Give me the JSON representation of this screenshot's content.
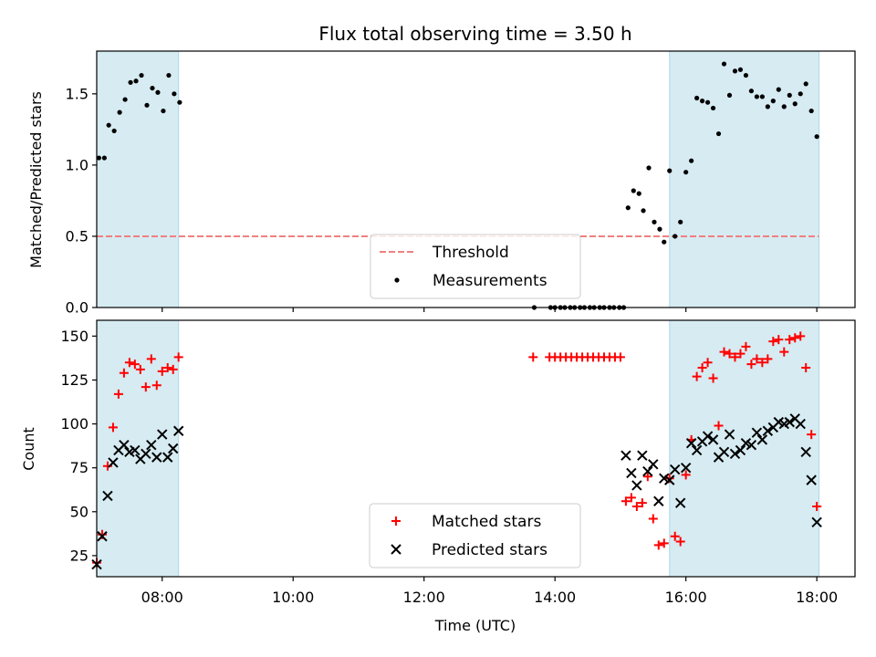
{
  "figure": {
    "title": "Flux total observing time = 3.50 h",
    "xlabel": "Time (UTC)"
  },
  "colors": {
    "shade": "#add8e6",
    "threshold": "#f08080",
    "measurement": "#000000",
    "matched": "#ff0000",
    "predicted": "#000000"
  },
  "chart_data": [
    {
      "type": "scatter",
      "ylabel": "Matched/Predicted stars",
      "xlim": [
        "07:00",
        "18:35"
      ],
      "ylim": [
        0,
        1.8
      ],
      "yticks": [
        0.0,
        0.5,
        1.0,
        1.5
      ],
      "ytick_labels": [
        "0.0",
        "0.5",
        "1.0",
        "1.5"
      ],
      "xticks": [
        "08:00",
        "10:00",
        "12:00",
        "14:00",
        "16:00",
        "18:00"
      ],
      "shaded_intervals": [
        [
          "07:00",
          "08:15"
        ],
        [
          "15:45",
          "18:02"
        ]
      ],
      "threshold": {
        "name": "Threshold",
        "value": 0.5,
        "style": "dashed",
        "xrange": [
          "07:00",
          "18:02"
        ]
      },
      "legend_position": "bottom-center",
      "series": [
        {
          "name": "Measurements",
          "marker": "dot",
          "points": [
            [
              "07:02",
              1.05
            ],
            [
              "07:07",
              1.05
            ],
            [
              "07:11",
              1.28
            ],
            [
              "07:16",
              1.24
            ],
            [
              "07:21",
              1.37
            ],
            [
              "07:26",
              1.46
            ],
            [
              "07:31",
              1.58
            ],
            [
              "07:36",
              1.59
            ],
            [
              "07:41",
              1.63
            ],
            [
              "07:46",
              1.42
            ],
            [
              "07:51",
              1.54
            ],
            [
              "07:56",
              1.51
            ],
            [
              "08:01",
              1.38
            ],
            [
              "08:06",
              1.63
            ],
            [
              "08:11",
              1.5
            ],
            [
              "08:16",
              1.44
            ],
            [
              "13:41",
              0.0
            ],
            [
              "13:56",
              0.0
            ],
            [
              "14:00",
              0.0
            ],
            [
              "14:05",
              0.0
            ],
            [
              "14:09",
              0.0
            ],
            [
              "14:14",
              0.0
            ],
            [
              "14:18",
              0.0
            ],
            [
              "14:23",
              0.0
            ],
            [
              "14:27",
              0.0
            ],
            [
              "14:32",
              0.0
            ],
            [
              "14:36",
              0.0
            ],
            [
              "14:41",
              0.0
            ],
            [
              "14:45",
              0.0
            ],
            [
              "14:50",
              0.0
            ],
            [
              "14:54",
              0.0
            ],
            [
              "14:59",
              0.0
            ],
            [
              "15:03",
              0.0
            ],
            [
              "15:07",
              0.7
            ],
            [
              "15:12",
              0.82
            ],
            [
              "15:17",
              0.8
            ],
            [
              "15:21",
              0.68
            ],
            [
              "15:26",
              0.98
            ],
            [
              "15:31",
              0.6
            ],
            [
              "15:36",
              0.55
            ],
            [
              "15:40",
              0.46
            ],
            [
              "15:45",
              0.96
            ],
            [
              "15:50",
              0.5
            ],
            [
              "15:55",
              0.6
            ],
            [
              "16:00",
              0.95
            ],
            [
              "16:05",
              1.03
            ],
            [
              "16:10",
              1.47
            ],
            [
              "16:15",
              1.45
            ],
            [
              "16:20",
              1.44
            ],
            [
              "16:25",
              1.4
            ],
            [
              "16:30",
              1.22
            ],
            [
              "16:35",
              1.71
            ],
            [
              "16:40",
              1.49
            ],
            [
              "16:45",
              1.66
            ],
            [
              "16:50",
              1.67
            ],
            [
              "16:55",
              1.63
            ],
            [
              "17:00",
              1.52
            ],
            [
              "17:05",
              1.48
            ],
            [
              "17:10",
              1.48
            ],
            [
              "17:15",
              1.41
            ],
            [
              "17:20",
              1.45
            ],
            [
              "17:25",
              1.53
            ],
            [
              "17:30",
              1.41
            ],
            [
              "17:35",
              1.49
            ],
            [
              "17:40",
              1.43
            ],
            [
              "17:45",
              1.5
            ],
            [
              "17:50",
              1.57
            ],
            [
              "17:55",
              1.38
            ],
            [
              "18:00",
              1.2
            ]
          ]
        }
      ]
    },
    {
      "type": "scatter",
      "ylabel": "Count",
      "xlim": [
        "07:00",
        "18:35"
      ],
      "ylim": [
        13,
        159
      ],
      "yticks": [
        25,
        50,
        75,
        100,
        125,
        150
      ],
      "ytick_labels": [
        "25",
        "50",
        "75",
        "100",
        "125",
        "150"
      ],
      "xticks": [
        "08:00",
        "10:00",
        "12:00",
        "14:00",
        "16:00",
        "18:00"
      ],
      "xtick_labels": [
        "08:00",
        "10:00",
        "12:00",
        "14:00",
        "16:00",
        "18:00"
      ],
      "shaded_intervals": [
        [
          "07:00",
          "08:15"
        ],
        [
          "15:45",
          "18:02"
        ]
      ],
      "legend_position": "bottom-center",
      "series": [
        {
          "name": "Matched stars",
          "marker": "plus",
          "points": [
            [
              "07:00",
              21
            ],
            [
              "07:05",
              37
            ],
            [
              "07:10",
              76
            ],
            [
              "07:15",
              98
            ],
            [
              "07:20",
              117
            ],
            [
              "07:25",
              129
            ],
            [
              "07:30",
              135
            ],
            [
              "07:35",
              134
            ],
            [
              "07:40",
              131
            ],
            [
              "07:45",
              121
            ],
            [
              "07:50",
              137
            ],
            [
              "07:55",
              122
            ],
            [
              "08:00",
              130
            ],
            [
              "08:05",
              132
            ],
            [
              "08:10",
              131
            ],
            [
              "08:15",
              138
            ],
            [
              "13:40",
              138
            ],
            [
              "13:55",
              138
            ],
            [
              "14:00",
              138
            ],
            [
              "14:05",
              138
            ],
            [
              "14:10",
              138
            ],
            [
              "14:15",
              138
            ],
            [
              "14:20",
              138
            ],
            [
              "14:25",
              138
            ],
            [
              "14:30",
              138
            ],
            [
              "14:35",
              138
            ],
            [
              "14:40",
              138
            ],
            [
              "14:45",
              138
            ],
            [
              "14:50",
              138
            ],
            [
              "14:55",
              138
            ],
            [
              "15:00",
              138
            ],
            [
              "15:05",
              56
            ],
            [
              "15:10",
              58
            ],
            [
              "15:15",
              53
            ],
            [
              "15:20",
              55
            ],
            [
              "15:25",
              70
            ],
            [
              "15:30",
              46
            ],
            [
              "15:35",
              31
            ],
            [
              "15:40",
              32
            ],
            [
              "15:45",
              69
            ],
            [
              "15:50",
              36
            ],
            [
              "15:55",
              33
            ],
            [
              "16:00",
              71
            ],
            [
              "16:05",
              91
            ],
            [
              "16:10",
              127
            ],
            [
              "16:15",
              132
            ],
            [
              "16:20",
              135
            ],
            [
              "16:25",
              126
            ],
            [
              "16:30",
              99
            ],
            [
              "16:35",
              141
            ],
            [
              "16:40",
              140
            ],
            [
              "16:45",
              138
            ],
            [
              "16:50",
              140
            ],
            [
              "16:55",
              144
            ],
            [
              "17:00",
              134
            ],
            [
              "17:05",
              137
            ],
            [
              "17:10",
              135
            ],
            [
              "17:15",
              137
            ],
            [
              "17:20",
              147
            ],
            [
              "17:25",
              148
            ],
            [
              "17:30",
              141
            ],
            [
              "17:35",
              148
            ],
            [
              "17:40",
              149
            ],
            [
              "17:45",
              150
            ],
            [
              "17:50",
              132
            ],
            [
              "17:55",
              94
            ],
            [
              "18:00",
              53
            ]
          ]
        },
        {
          "name": "Predicted stars",
          "marker": "x",
          "points": [
            [
              "07:00",
              20
            ],
            [
              "07:05",
              36
            ],
            [
              "07:10",
              59
            ],
            [
              "07:15",
              78
            ],
            [
              "07:20",
              85
            ],
            [
              "07:25",
              88
            ],
            [
              "07:30",
              84
            ],
            [
              "07:35",
              85
            ],
            [
              "07:40",
              80
            ],
            [
              "07:45",
              83
            ],
            [
              "07:50",
              88
            ],
            [
              "07:55",
              81
            ],
            [
              "08:00",
              94
            ],
            [
              "08:05",
              81
            ],
            [
              "08:10",
              86
            ],
            [
              "08:15",
              96
            ],
            [
              "15:05",
              82
            ],
            [
              "15:10",
              72
            ],
            [
              "15:15",
              65
            ],
            [
              "15:20",
              82
            ],
            [
              "15:25",
              73
            ],
            [
              "15:30",
              77
            ],
            [
              "15:35",
              56
            ],
            [
              "15:40",
              69
            ],
            [
              "15:45",
              68
            ],
            [
              "15:50",
              74
            ],
            [
              "15:55",
              55
            ],
            [
              "16:00",
              75
            ],
            [
              "16:05",
              89
            ],
            [
              "16:10",
              85
            ],
            [
              "16:15",
              90
            ],
            [
              "16:20",
              93
            ],
            [
              "16:25",
              91
            ],
            [
              "16:30",
              81
            ],
            [
              "16:35",
              84
            ],
            [
              "16:40",
              94
            ],
            [
              "16:45",
              83
            ],
            [
              "16:50",
              85
            ],
            [
              "16:55",
              89
            ],
            [
              "17:00",
              88
            ],
            [
              "17:05",
              95
            ],
            [
              "17:10",
              91
            ],
            [
              "17:15",
              96
            ],
            [
              "17:20",
              98
            ],
            [
              "17:25",
              101
            ],
            [
              "17:30",
              100
            ],
            [
              "17:35",
              101
            ],
            [
              "17:40",
              103
            ],
            [
              "17:45",
              100
            ],
            [
              "17:50",
              84
            ],
            [
              "17:55",
              68
            ],
            [
              "18:00",
              44
            ]
          ]
        }
      ]
    }
  ]
}
